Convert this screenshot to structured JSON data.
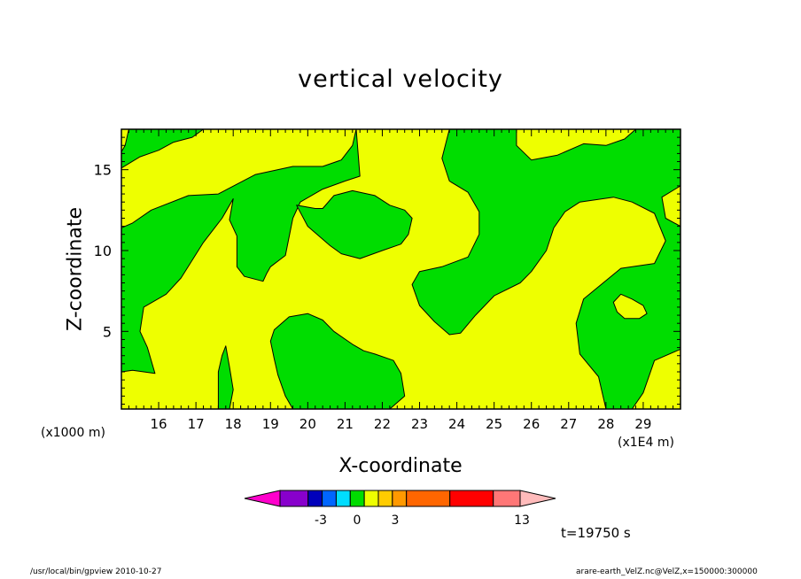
{
  "title": "vertical velocity",
  "footer_left": "/usr/local/bin/gpview   2010-10-27",
  "footer_right": "arare-earth_VelZ.nc@VelZ,x=150000:300000",
  "time_label": "t=19750 s",
  "chart_data": {
    "type": "heatmap",
    "title": "vertical velocity",
    "xlabel": "X-coordinate",
    "ylabel": "Z-coordinate",
    "x_unit_label": "(x1E4 m)",
    "y_unit_label": "(x1000 m)",
    "xlim": [
      15,
      30
    ],
    "ylim": [
      0.2,
      17.5
    ],
    "x_ticks": [
      16,
      17,
      18,
      19,
      20,
      21,
      22,
      23,
      24,
      25,
      26,
      27,
      28,
      29
    ],
    "y_ticks": [
      5,
      10,
      15
    ],
    "grid": false,
    "fill_colors": {
      "below_zero": "#00dd00",
      "zero_to_one": "#eeff00"
    },
    "regions_green": [
      {
        "name": "left-edge",
        "polygon": [
          [
            15,
            17.5
          ],
          [
            15.2,
            17.5
          ],
          [
            15.1,
            16.5
          ],
          [
            15,
            16.1
          ],
          [
            15,
            15.1
          ],
          [
            15.5,
            15.8
          ],
          [
            16.0,
            16.2
          ],
          [
            16.4,
            16.7
          ],
          [
            16.9,
            17.0
          ],
          [
            17.2,
            17.5
          ],
          [
            21.3,
            17.5
          ],
          [
            21.2,
            16.5
          ],
          [
            20.9,
            15.6
          ],
          [
            20.4,
            15.2
          ],
          [
            19.6,
            15.2
          ],
          [
            18.6,
            14.7
          ],
          [
            17.6,
            13.5
          ],
          [
            16.8,
            13.4
          ],
          [
            15.8,
            12.5
          ],
          [
            15.3,
            11.7
          ],
          [
            15.0,
            11.4
          ],
          [
            15.0,
            2.5
          ],
          [
            15.3,
            2.6
          ],
          [
            15.9,
            2.4
          ],
          [
            15.7,
            4.0
          ],
          [
            15.5,
            5.0
          ],
          [
            15.6,
            6.5
          ],
          [
            16.2,
            7.3
          ],
          [
            16.6,
            8.3
          ],
          [
            17.2,
            10.5
          ],
          [
            17.7,
            12.0
          ],
          [
            18.0,
            13.2
          ],
          [
            17.9,
            11.9
          ],
          [
            18.1,
            10.9
          ],
          [
            18.1,
            9.0
          ],
          [
            18.3,
            8.4
          ],
          [
            18.8,
            8.1
          ],
          [
            18.9,
            8.6
          ],
          [
            19.0,
            9.0
          ],
          [
            19.4,
            9.7
          ],
          [
            19.6,
            12.0
          ],
          [
            19.8,
            13.0
          ],
          [
            20.4,
            13.8
          ],
          [
            21.0,
            14.3
          ],
          [
            21.4,
            14.6
          ],
          [
            21.3,
            17.5
          ]
        ]
      },
      {
        "name": "center-bulge",
        "polygon": [
          [
            19.7,
            12.8
          ],
          [
            20.0,
            11.5
          ],
          [
            20.6,
            10.3
          ],
          [
            20.9,
            9.8
          ],
          [
            21.4,
            9.5
          ],
          [
            22.0,
            10.0
          ],
          [
            22.5,
            10.4
          ],
          [
            22.7,
            11.0
          ],
          [
            22.8,
            12.0
          ],
          [
            22.6,
            12.5
          ],
          [
            22.2,
            12.8
          ],
          [
            21.8,
            13.4
          ],
          [
            21.2,
            13.7
          ],
          [
            20.7,
            13.4
          ],
          [
            20.4,
            12.6
          ],
          [
            20.2,
            12.6
          ],
          [
            19.7,
            12.8
          ]
        ]
      },
      {
        "name": "mid-right",
        "polygon": [
          [
            23.8,
            17.5
          ],
          [
            25.6,
            17.5
          ],
          [
            25.6,
            16.5
          ],
          [
            26.0,
            15.6
          ],
          [
            26.7,
            15.9
          ],
          [
            27.4,
            16.6
          ],
          [
            28.0,
            16.5
          ],
          [
            28.5,
            16.9
          ],
          [
            28.8,
            17.5
          ],
          [
            30,
            17.5
          ],
          [
            30,
            14.0
          ],
          [
            29.5,
            13.3
          ],
          [
            29.6,
            12.0
          ],
          [
            30,
            11.5
          ],
          [
            30,
            3.9
          ],
          [
            29.3,
            3.2
          ],
          [
            29.0,
            1.2
          ],
          [
            28.7,
            0.2
          ],
          [
            28.0,
            0.2
          ],
          [
            27.8,
            2.2
          ],
          [
            27.3,
            3.6
          ],
          [
            27.2,
            5.5
          ],
          [
            27.4,
            7.0
          ],
          [
            28.4,
            8.9
          ],
          [
            29.3,
            9.2
          ],
          [
            29.6,
            10.6
          ],
          [
            29.3,
            12.3
          ],
          [
            28.7,
            13.0
          ],
          [
            28.2,
            13.3
          ],
          [
            27.3,
            13.0
          ],
          [
            26.9,
            12.4
          ],
          [
            26.6,
            11.4
          ],
          [
            26.4,
            10.0
          ],
          [
            26.0,
            8.7
          ],
          [
            25.7,
            8.0
          ],
          [
            25.0,
            7.2
          ],
          [
            24.5,
            6.0
          ],
          [
            24.1,
            4.9
          ],
          [
            23.8,
            4.8
          ],
          [
            23.4,
            5.6
          ],
          [
            23.0,
            6.6
          ],
          [
            22.8,
            7.9
          ],
          [
            23.0,
            8.7
          ],
          [
            23.6,
            9.0
          ],
          [
            24.3,
            9.6
          ],
          [
            24.6,
            11.0
          ],
          [
            24.6,
            12.4
          ],
          [
            24.3,
            13.6
          ],
          [
            23.8,
            14.3
          ],
          [
            23.6,
            15.7
          ],
          [
            23.8,
            17.5
          ]
        ]
      },
      {
        "name": "bottom-lobe",
        "polygon": [
          [
            19.6,
            0.2
          ],
          [
            22.2,
            0.2
          ],
          [
            22.6,
            1.0
          ],
          [
            22.5,
            2.4
          ],
          [
            22.3,
            3.2
          ],
          [
            21.8,
            3.6
          ],
          [
            21.5,
            3.8
          ],
          [
            21.2,
            4.2
          ],
          [
            20.7,
            5.0
          ],
          [
            20.4,
            5.7
          ],
          [
            20.0,
            6.1
          ],
          [
            19.5,
            5.9
          ],
          [
            19.1,
            5.1
          ],
          [
            19.0,
            4.4
          ],
          [
            19.1,
            3.3
          ],
          [
            19.2,
            2.3
          ],
          [
            19.4,
            1.0
          ],
          [
            19.6,
            0.2
          ]
        ]
      },
      {
        "name": "bottom-spike",
        "polygon": [
          [
            17.6,
            0.2
          ],
          [
            17.9,
            0.2
          ],
          [
            18.0,
            1.4
          ],
          [
            17.9,
            2.8
          ],
          [
            17.8,
            4.1
          ],
          [
            17.7,
            3.5
          ],
          [
            17.6,
            2.5
          ],
          [
            17.6,
            1.5
          ],
          [
            17.6,
            0.2
          ]
        ]
      },
      {
        "name": "yellow-hole-right",
        "polygon": [
          [
            28.4,
            7.3
          ],
          [
            28.7,
            7.0
          ],
          [
            29.0,
            6.6
          ],
          [
            29.1,
            6.1
          ],
          [
            28.9,
            5.8
          ],
          [
            28.5,
            5.8
          ],
          [
            28.3,
            6.2
          ],
          [
            28.2,
            6.8
          ],
          [
            28.4,
            7.3
          ]
        ]
      }
    ],
    "colorbar": {
      "tick_labels": [
        "-3",
        "0",
        "3",
        "13"
      ],
      "colors": [
        "#ff00cc",
        "#8800cc",
        "#0000bb",
        "#0066ff",
        "#00ddff",
        "#00dd00",
        "#eeff00",
        "#ffcc00",
        "#ff9900",
        "#ff6600",
        "#ff0000",
        "#ff7777",
        "#ffbbbb"
      ]
    }
  }
}
